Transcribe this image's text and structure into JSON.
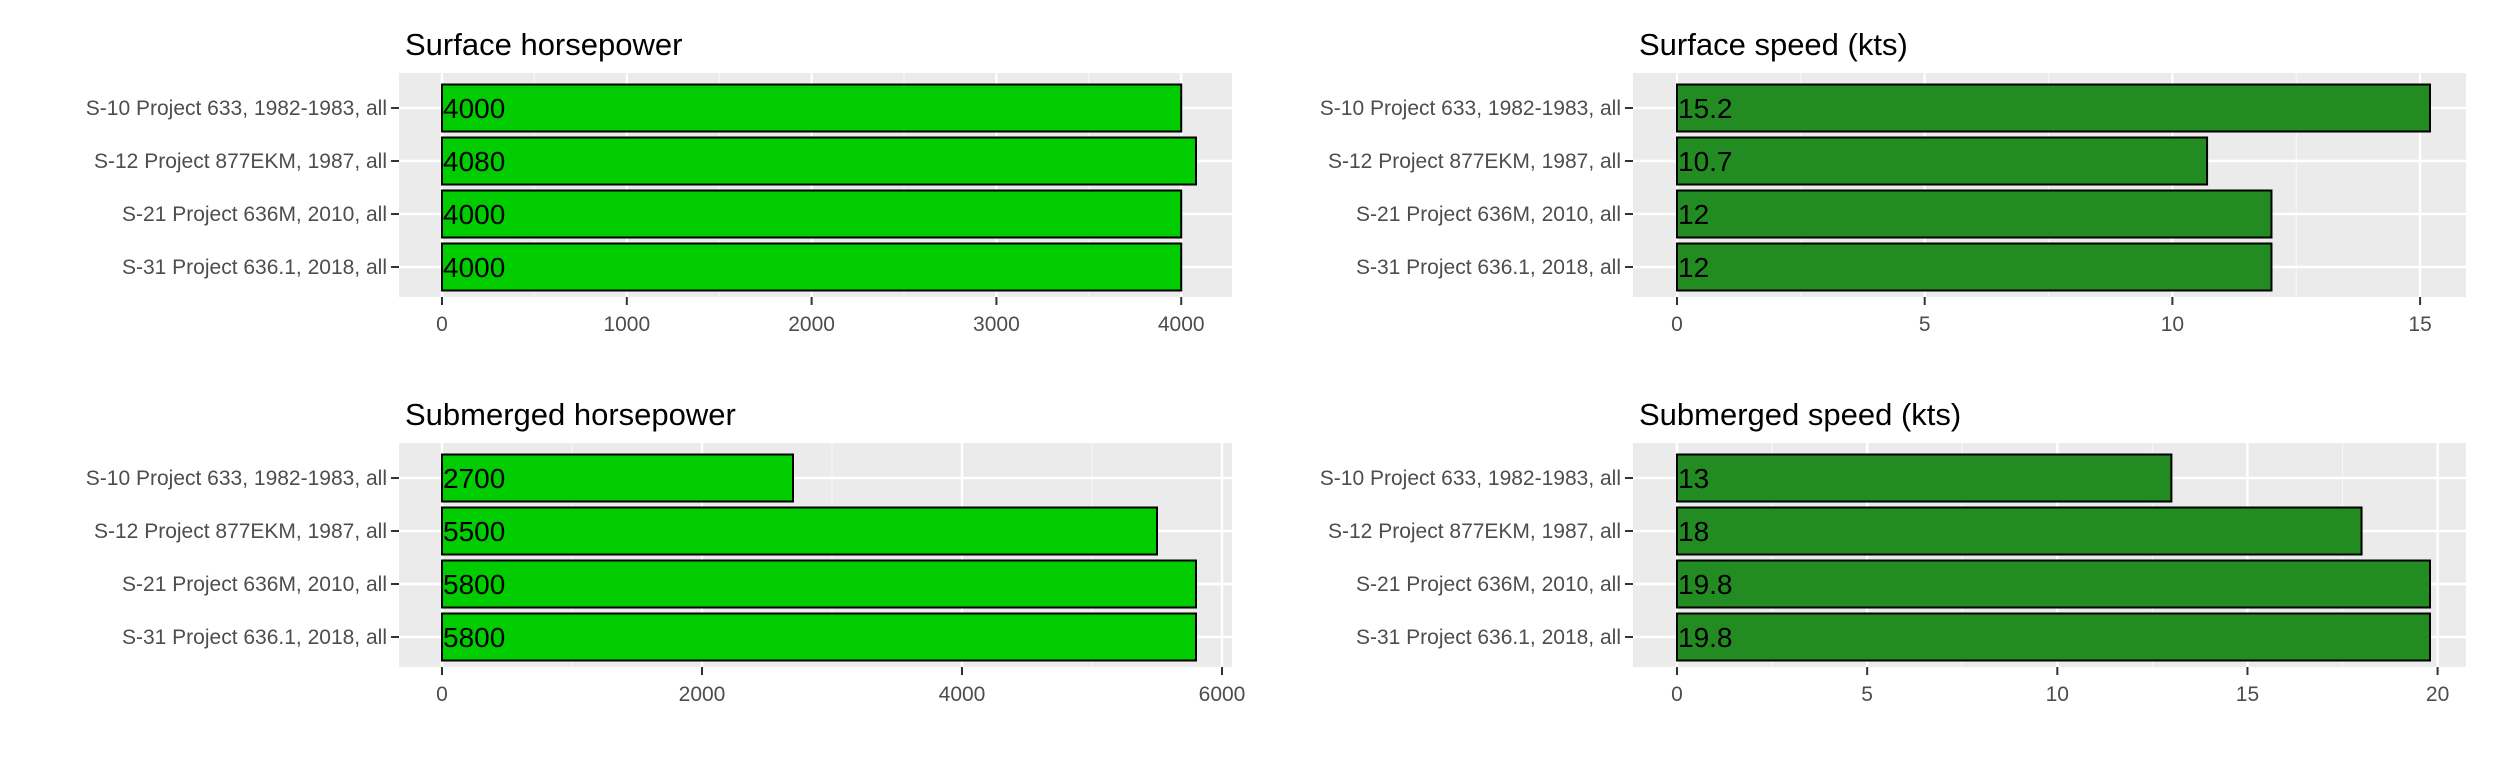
{
  "chart_data": [
    {
      "type": "bar",
      "orientation": "horizontal",
      "title": "Surface horsepower",
      "categories": [
        "S-10 Project 633, 1982-1983, all",
        "S-12 Project 877EKM, 1987, all",
        "S-21 Project 636M, 2010, all",
        "S-31 Project 636.1, 2018, all"
      ],
      "values": [
        4000,
        4080,
        4000,
        4000
      ],
      "value_labels": [
        "4000",
        "4080",
        "4000",
        "4000"
      ],
      "xlim": [
        0,
        4080
      ],
      "ticks": [
        0,
        1000,
        2000,
        3000,
        4000
      ],
      "tick_labels": [
        "0",
        "1000",
        "2000",
        "3000",
        "4000"
      ],
      "grid": true,
      "bar_color": "#00cc00"
    },
    {
      "type": "bar",
      "orientation": "horizontal",
      "title": "Surface speed (kts)",
      "categories": [
        "S-10 Project 633, 1982-1983, all",
        "S-12 Project 877EKM, 1987, all",
        "S-21 Project 636M, 2010, all",
        "S-31 Project 636.1, 2018, all"
      ],
      "values": [
        15.2,
        10.7,
        12,
        12
      ],
      "value_labels": [
        "15.2",
        "10.7",
        "12",
        "12"
      ],
      "xlim": [
        0,
        15.2
      ],
      "ticks": [
        0,
        5,
        10,
        15
      ],
      "tick_labels": [
        "0",
        "5",
        "10",
        "15"
      ],
      "grid": true,
      "bar_color": "#228b22"
    },
    {
      "type": "bar",
      "orientation": "horizontal",
      "title": "Submerged horsepower",
      "categories": [
        "S-10 Project 633, 1982-1983, all",
        "S-12 Project 877EKM, 1987, all",
        "S-21 Project 636M, 2010, all",
        "S-31 Project 636.1, 2018, all"
      ],
      "values": [
        2700,
        5500,
        5800,
        5800
      ],
      "value_labels": [
        "2700",
        "5500",
        "5800",
        "5800"
      ],
      "xlim": [
        0,
        5800
      ],
      "ticks": [
        0,
        2000,
        4000,
        6000
      ],
      "tick_labels": [
        "0",
        "2000",
        "4000",
        "6000"
      ],
      "grid": true,
      "bar_color": "#00cc00"
    },
    {
      "type": "bar",
      "orientation": "horizontal",
      "title": "Submerged speed (kts)",
      "categories": [
        "S-10 Project 633, 1982-1983, all",
        "S-12 Project 877EKM, 1987, all",
        "S-21 Project 636M, 2010, all",
        "S-31 Project 636.1, 2018, all"
      ],
      "values": [
        13,
        18,
        19.8,
        19.8
      ],
      "value_labels": [
        "13",
        "18",
        "19.8",
        "19.8"
      ],
      "xlim": [
        0,
        19.8
      ],
      "ticks": [
        0,
        5,
        10,
        15,
        20
      ],
      "tick_labels": [
        "0",
        "5",
        "10",
        "15",
        "20"
      ],
      "grid": true,
      "bar_color": "#228b22"
    }
  ]
}
